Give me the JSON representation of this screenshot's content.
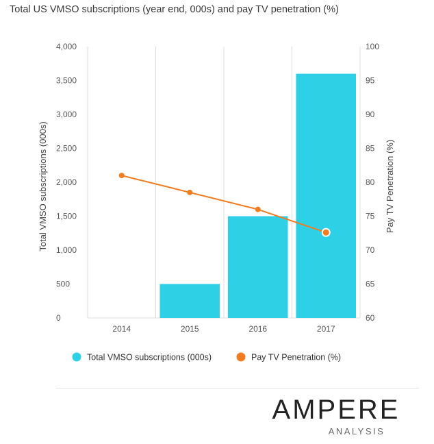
{
  "chart_data": {
    "type": "bar",
    "title": "Total US VMSO subscriptions (year end, 000s) and pay TV penetration (%)",
    "categories": [
      "2014",
      "2015",
      "2016",
      "2017"
    ],
    "series": [
      {
        "name": "Total VMSO subscriptions (000s)",
        "type": "bar",
        "axis": "left",
        "values": [
          0,
          500,
          1500,
          3600
        ],
        "color": "#2ED0E6"
      },
      {
        "name": "Pay TV Penetration (%)",
        "type": "line",
        "axis": "right",
        "values": [
          81,
          78.5,
          76,
          72.6
        ],
        "color": "#F07D22"
      }
    ],
    "ylabel": "Total VMSO subscriptions (000s)",
    "y2label": "Pay TV Penetration (%)",
    "ylim": [
      0,
      4000
    ],
    "y2lim": [
      60,
      100
    ],
    "yticks": [
      "0",
      "500",
      "1,000",
      "1,500",
      "2,000",
      "2,500",
      "3,000",
      "3,500",
      "4,000"
    ],
    "y2ticks": [
      "60",
      "65",
      "70",
      "75",
      "80",
      "85",
      "90",
      "95",
      "100"
    ],
    "grid": "vertical",
    "legend": "bottom"
  },
  "logo": {
    "name": "AMPERE",
    "subtitle": "ANALYSIS"
  }
}
